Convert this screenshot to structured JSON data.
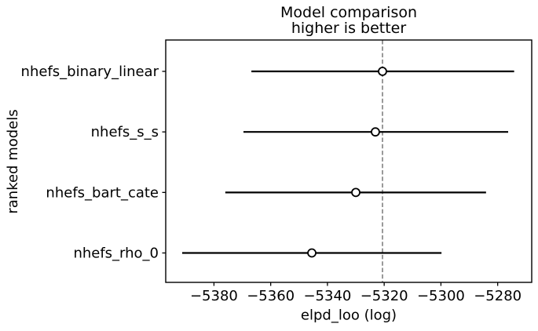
{
  "chart_data": {
    "type": "scatter",
    "title": "Model comparison\nhigher is better",
    "title_lines": [
      "Model comparison",
      "higher is better"
    ],
    "xlabel": "elpd_loo (log)",
    "ylabel": "ranked models",
    "xlim": [
      -5397,
      -5268
    ],
    "xticks": [
      -5380,
      -5360,
      -5340,
      -5320,
      -5300,
      -5280
    ],
    "xtick_labels": [
      "−5380",
      "−5360",
      "−5340",
      "−5320",
      "−5300",
      "−5280"
    ],
    "grid": false,
    "legend": false,
    "reference_line": {
      "x": -5320.6,
      "style": "dashed",
      "color": "#808080"
    },
    "marker": {
      "shape": "open-circle",
      "fill": "#ffffff",
      "edge": "#000000"
    },
    "colors": {
      "line": "#000000",
      "text": "#000000",
      "spine": "#000000"
    },
    "rows": [
      {
        "model": "nhefs_binary_linear",
        "elpd_loo": -5320.6,
        "ci_low": -5366.8,
        "ci_high": -5274.2
      },
      {
        "model": "nhefs_s_s",
        "elpd_loo": -5323.1,
        "ci_low": -5369.6,
        "ci_high": -5276.3
      },
      {
        "model": "nhefs_bart_cate",
        "elpd_loo": -5330.0,
        "ci_low": -5376.0,
        "ci_high": -5284.1
      },
      {
        "model": "nhefs_rho_0",
        "elpd_loo": -5345.5,
        "ci_low": -5391.2,
        "ci_high": -5299.8
      }
    ]
  }
}
